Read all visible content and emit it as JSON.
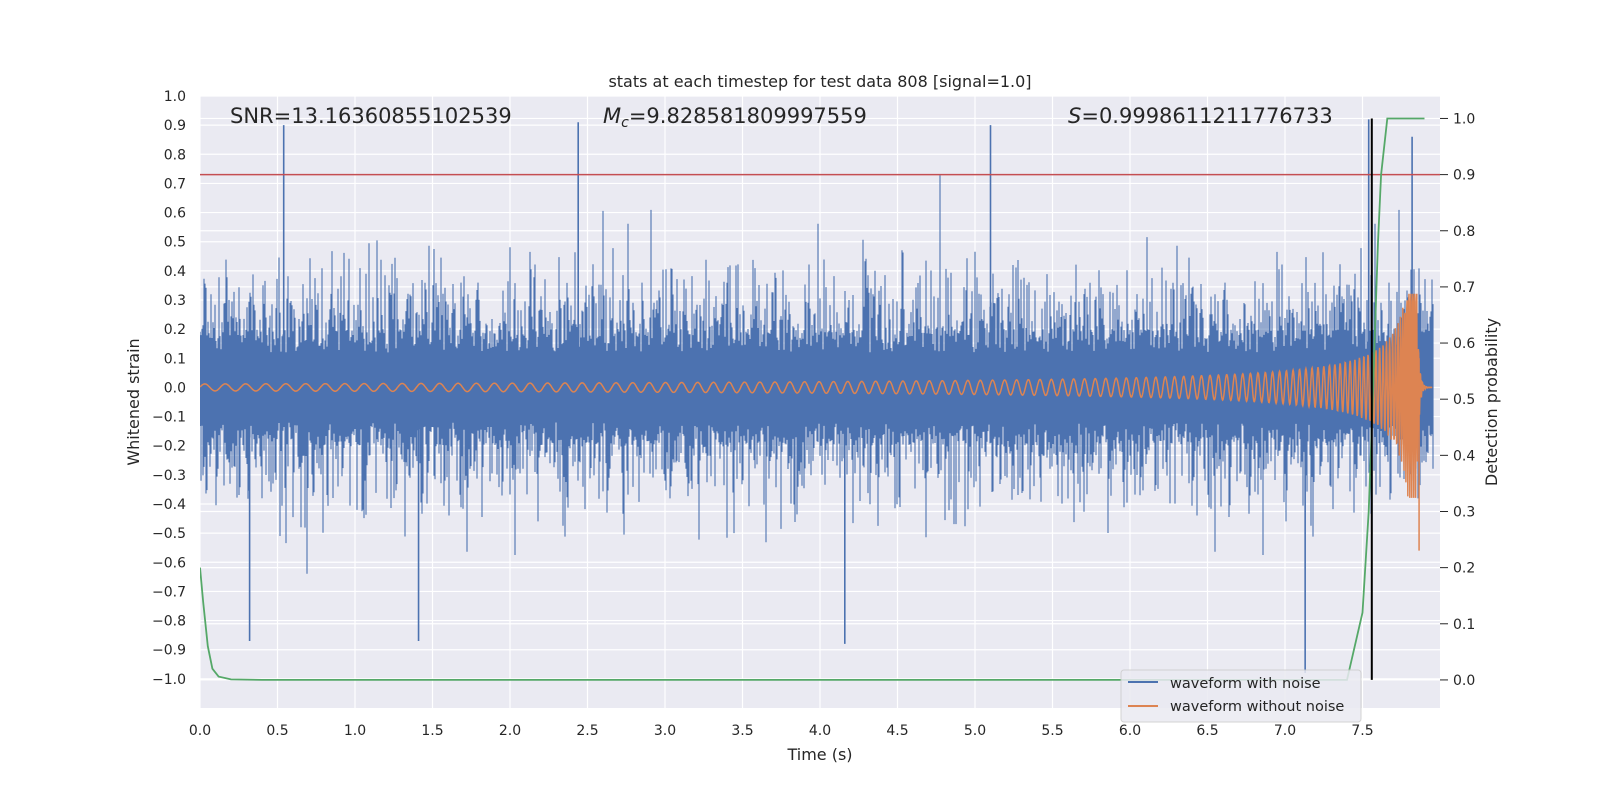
{
  "chart_data": {
    "type": "line",
    "title": "stats at each timestep for test data 808 [signal=1.0]",
    "xlabel": "Time (s)",
    "ylabel": "Whitened strain",
    "y2label": "Detection probability",
    "xlim": [
      0.0,
      8.0
    ],
    "ylim": [
      -1.1,
      1.0
    ],
    "y2lim": [
      -0.05,
      1.04
    ],
    "xticks": [
      0.0,
      0.5,
      1.0,
      1.5,
      2.0,
      2.5,
      3.0,
      3.5,
      4.0,
      4.5,
      5.0,
      5.5,
      6.0,
      6.5,
      7.0,
      7.5
    ],
    "yticks": [
      -1.0,
      -0.9,
      -0.8,
      -0.7,
      -0.6,
      -0.5,
      -0.4,
      -0.3,
      -0.2,
      -0.1,
      0.0,
      0.1,
      0.2,
      0.3,
      0.4,
      0.5,
      0.6,
      0.7,
      0.8,
      0.9,
      1.0
    ],
    "y2ticks": [
      0.0,
      0.1,
      0.2,
      0.3,
      0.4,
      0.5,
      0.6,
      0.7,
      0.8,
      0.9,
      1.0
    ],
    "grid": true,
    "legend_position": "lower-right",
    "annotations": {
      "snr": "SNR=13.16360855102539",
      "mc_symbol": "M",
      "mc_subscript": "c",
      "mc_value": "=9.828581809997559",
      "s_symbol": "S",
      "s_value": "=0.9998611211776733"
    },
    "series": [
      {
        "name": "waveform with noise",
        "color": "#4c72b0",
        "axis": "left",
        "description_of_shape": "dense whitened noise, envelope roughly within +/-0.6 with spikes",
        "peak_samples": [
          {
            "x": 0.54,
            "y": 0.9
          },
          {
            "x": 2.44,
            "y": 0.91
          },
          {
            "x": 5.1,
            "y": 0.9
          },
          {
            "x": 7.54,
            "y": 0.92
          },
          {
            "x": 7.82,
            "y": 0.86
          },
          {
            "x": 0.32,
            "y": -0.87
          },
          {
            "x": 1.41,
            "y": -0.87
          },
          {
            "x": 4.16,
            "y": -0.88
          },
          {
            "x": 7.13,
            "y": -0.98
          }
        ]
      },
      {
        "name": "waveform without noise",
        "color": "#dd8452",
        "axis": "left",
        "chirp": {
          "t_merge": 7.85,
          "amp_start": 0.012,
          "amp_peak": 0.38,
          "f_start": 12.5,
          "f_end": 80,
          "ringdown_min": -0.56
        }
      },
      {
        "name": "",
        "color": "#55a868",
        "axis": "right",
        "x": [
          0.0,
          0.02,
          0.05,
          0.08,
          0.12,
          0.2,
          0.4,
          1.0,
          7.4,
          7.5,
          7.54,
          7.56,
          7.58,
          7.6,
          7.62,
          7.66,
          7.7,
          7.9
        ],
        "y": [
          0.2,
          0.14,
          0.06,
          0.02,
          0.006,
          0.001,
          0.0,
          0.0,
          0.0,
          0.12,
          0.3,
          0.45,
          0.62,
          0.78,
          0.9,
          1.0,
          1.0,
          1.0
        ]
      }
    ],
    "hlines": [
      {
        "y2": 0.9,
        "color": "#c44e52"
      }
    ],
    "vlines": [
      {
        "x": 7.56,
        "y2_range": [
          0.0,
          1.0
        ],
        "color": "#000000"
      }
    ]
  }
}
